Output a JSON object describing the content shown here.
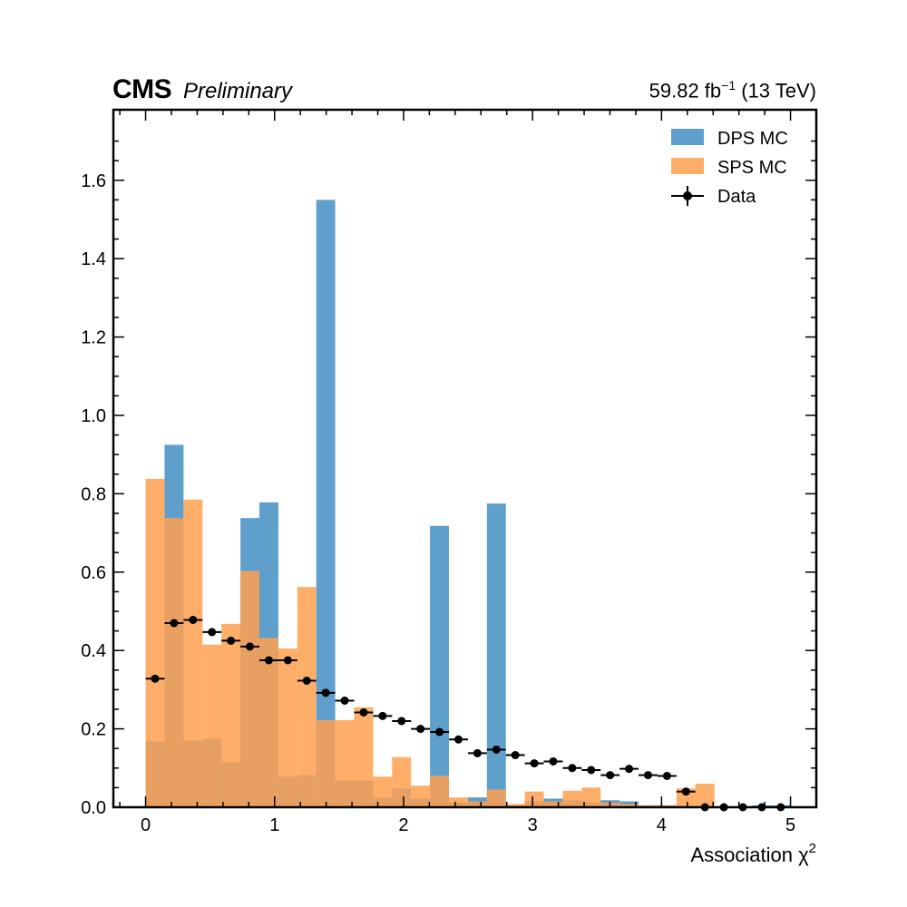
{
  "header": {
    "experiment": "CMS",
    "status": "Preliminary",
    "lumi_value": "59.82 fb",
    "lumi_exp": "−1",
    "energy": "(13 TeV)"
  },
  "chart_data": {
    "type": "bar",
    "title": "",
    "xlabel": "Association χ",
    "xlabel_sup": "2",
    "ylabel": "",
    "xlim": [
      -0.25,
      5.2
    ],
    "ylim": [
      0,
      1.78
    ],
    "bin_width": 0.147,
    "x_ticks": [
      0,
      1,
      2,
      3,
      4,
      5
    ],
    "x_tick_labels": [
      "0",
      "1",
      "2",
      "3",
      "4",
      "5"
    ],
    "y_ticks": [
      0.0,
      0.2,
      0.4,
      0.6,
      0.8,
      1.0,
      1.2,
      1.4,
      1.6
    ],
    "y_tick_labels": [
      "0.0",
      "0.2",
      "0.4",
      "0.6",
      "0.8",
      "1.0",
      "1.2",
      "1.4",
      "1.6"
    ],
    "legend_position": "top-right",
    "grid": false,
    "series": [
      {
        "name": "DPS MC",
        "kind": "histogram",
        "color": "#5f9fcc",
        "bin_edges": [
          0.0,
          0.147,
          0.294,
          0.441,
          0.588,
          0.735,
          0.882,
          1.029,
          1.176,
          1.323,
          1.47,
          1.617,
          1.764,
          1.911,
          2.058,
          2.205,
          2.352,
          2.499,
          2.646,
          2.793,
          2.94,
          3.087,
          3.234,
          3.381,
          3.528,
          3.675,
          3.822,
          3.969,
          4.116,
          4.263,
          4.41,
          4.557,
          4.704,
          4.851,
          4.998
        ],
        "values": [
          0.168,
          0.925,
          0.17,
          0.175,
          0.115,
          0.738,
          0.778,
          0.078,
          0.082,
          1.55,
          0.068,
          0.068,
          0.025,
          0.048,
          0.022,
          0.718,
          0.012,
          0.025,
          0.775,
          0.005,
          0.015,
          0.022,
          0.018,
          0.012,
          0.018,
          0.015,
          0.005,
          0.005,
          0.0,
          0.0,
          0.0,
          0.0,
          0.005,
          0.005
        ]
      },
      {
        "name": "SPS MC",
        "kind": "histogram",
        "color": "#ffa04f",
        "bin_edges": [
          0.0,
          0.147,
          0.294,
          0.441,
          0.588,
          0.735,
          0.882,
          1.029,
          1.176,
          1.323,
          1.47,
          1.617,
          1.764,
          1.911,
          2.058,
          2.205,
          2.352,
          2.499,
          2.646,
          2.793,
          2.94,
          3.087,
          3.234,
          3.381,
          3.528,
          3.675,
          3.822,
          3.969,
          4.116,
          4.263,
          4.41,
          4.557,
          4.704,
          4.851,
          4.998
        ],
        "values": [
          0.838,
          0.738,
          0.785,
          0.415,
          0.468,
          0.603,
          0.432,
          0.405,
          0.562,
          0.222,
          0.222,
          0.255,
          0.078,
          0.128,
          0.055,
          0.08,
          0.025,
          0.015,
          0.045,
          0.008,
          0.04,
          0.015,
          0.042,
          0.05,
          0.012,
          0.008,
          0.005,
          0.005,
          0.048,
          0.06,
          0.0,
          0.0,
          0.0,
          0.0
        ]
      },
      {
        "name": "Data",
        "kind": "points",
        "color": "#000000",
        "x": [
          0.0735,
          0.2205,
          0.3675,
          0.5145,
          0.6615,
          0.8085,
          0.9555,
          1.1025,
          1.2495,
          1.3965,
          1.5435,
          1.6905,
          1.8375,
          1.9845,
          2.1315,
          2.2785,
          2.4255,
          2.5725,
          2.7195,
          2.8665,
          3.0135,
          3.1605,
          3.3075,
          3.4545,
          3.6015,
          3.7485,
          3.8955,
          4.0425,
          4.1895,
          4.3365,
          4.4835,
          4.6305,
          4.7775,
          4.9245
        ],
        "values": [
          0.328,
          0.47,
          0.478,
          0.447,
          0.425,
          0.41,
          0.375,
          0.375,
          0.323,
          0.292,
          0.272,
          0.242,
          0.233,
          0.22,
          0.2,
          0.192,
          0.173,
          0.138,
          0.147,
          0.133,
          0.112,
          0.117,
          0.1,
          0.095,
          0.082,
          0.098,
          0.082,
          0.08,
          0.04,
          0.0,
          0.0,
          0.0,
          0.0,
          0.0
        ]
      }
    ]
  }
}
